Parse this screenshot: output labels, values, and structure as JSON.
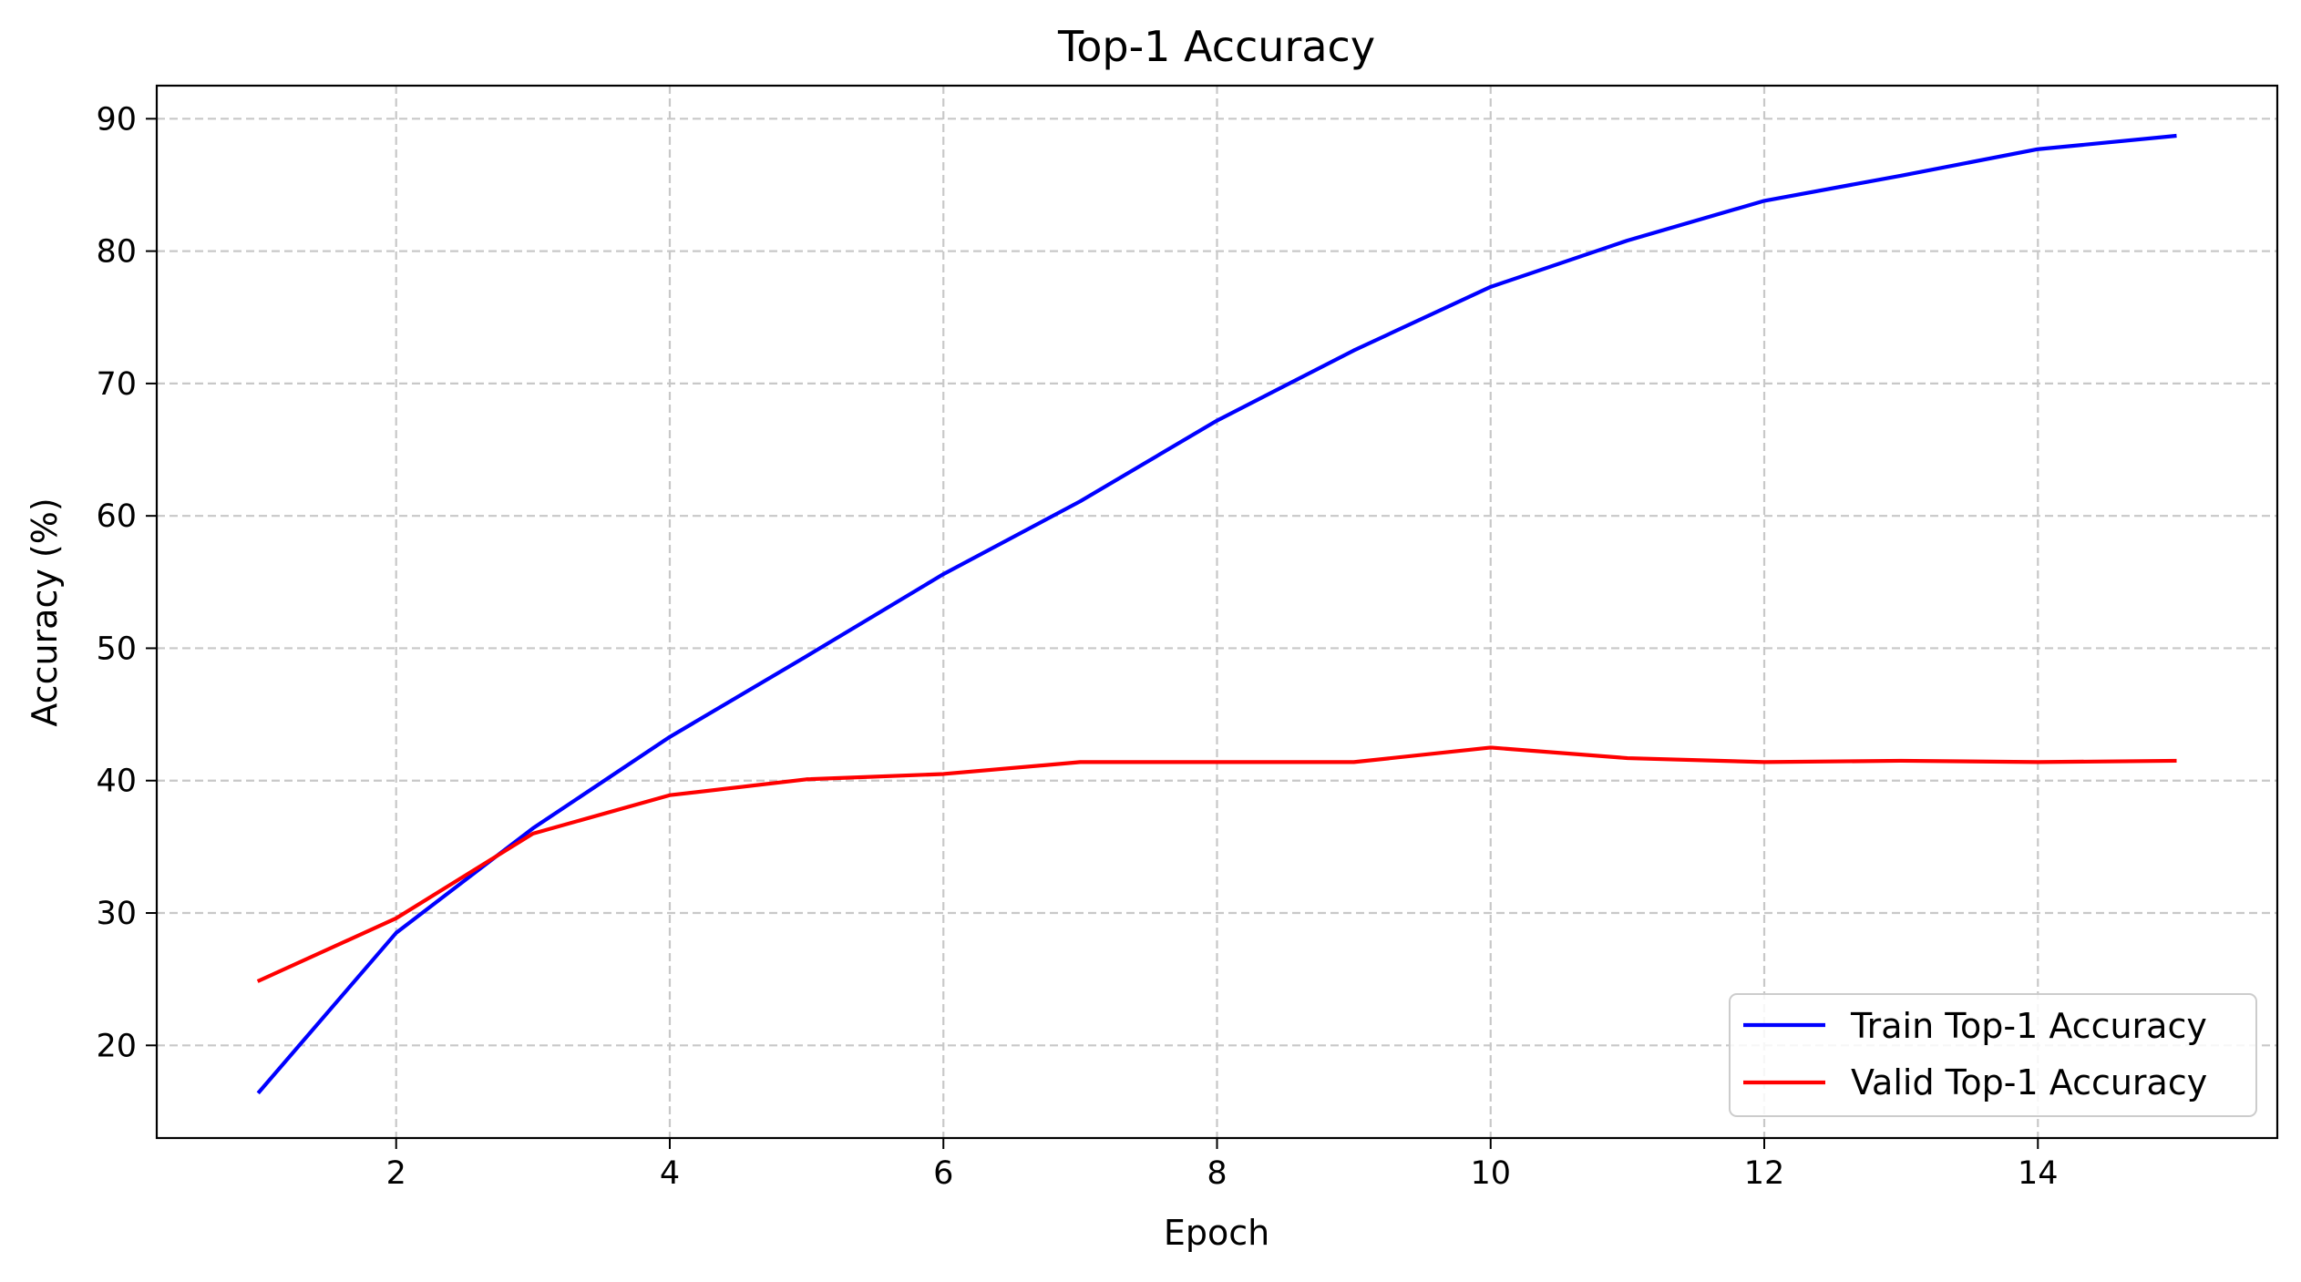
{
  "chart_data": {
    "type": "line",
    "title": "Top-1 Accuracy",
    "xlabel": "Epoch",
    "ylabel": "Accuracy (%)",
    "xlim": [
      0.25,
      15.75
    ],
    "ylim": [
      13,
      92.5
    ],
    "xticks": [
      2,
      4,
      6,
      8,
      10,
      12,
      14
    ],
    "yticks": [
      20,
      30,
      40,
      50,
      60,
      70,
      80,
      90
    ],
    "grid": true,
    "legend_position": "lower-right",
    "x": [
      1,
      2,
      3,
      4,
      5,
      6,
      7,
      8,
      9,
      10,
      11,
      12,
      13,
      14,
      15
    ],
    "series": [
      {
        "name": "Train Top-1 Accuracy",
        "color": "#0000ff",
        "values": [
          16.5,
          28.5,
          36.4,
          43.3,
          49.4,
          55.6,
          61.1,
          67.2,
          72.5,
          77.3,
          80.8,
          83.8,
          85.7,
          87.7,
          88.7
        ]
      },
      {
        "name": "Valid Top-1 Accuracy",
        "color": "#ff0000",
        "values": [
          24.9,
          29.6,
          36.0,
          38.9,
          40.1,
          40.5,
          41.4,
          41.4,
          41.4,
          42.5,
          41.7,
          41.4,
          41.5,
          41.4,
          41.5
        ]
      }
    ]
  }
}
